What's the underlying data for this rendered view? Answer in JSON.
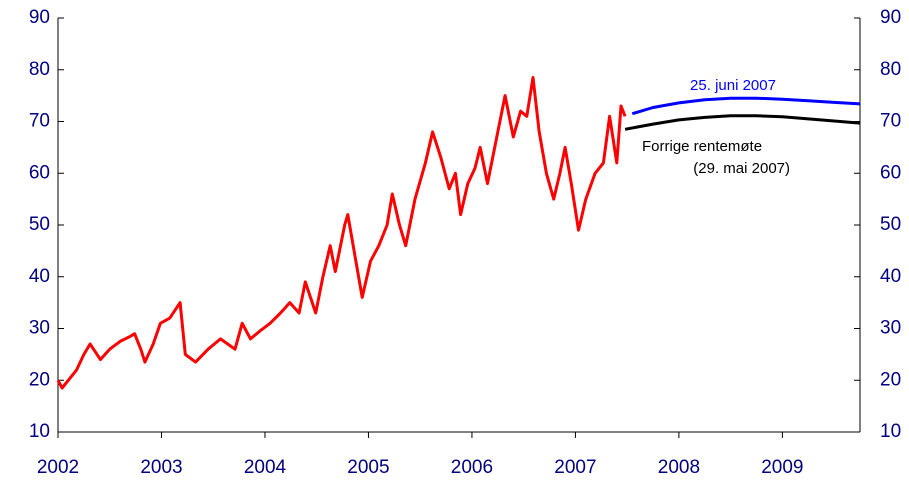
{
  "chart_data": {
    "type": "line",
    "xlim": [
      2002,
      2009.75
    ],
    "xticks": [
      2002,
      2003,
      2004,
      2005,
      2006,
      2007,
      2008,
      2009
    ],
    "ylim": [
      10,
      90
    ],
    "yticks": [
      10,
      20,
      30,
      40,
      50,
      60,
      70,
      80,
      90
    ],
    "y2lim": [
      10,
      90
    ],
    "y2ticks": [
      10,
      20,
      30,
      40,
      50,
      60,
      70,
      80,
      90
    ],
    "series": [
      {
        "color": "#ff0000",
        "x": [
          2002.0,
          2002.04,
          2002.1,
          2002.18,
          2002.25,
          2002.31,
          2002.36,
          2002.41,
          2002.5,
          2002.6,
          2002.7,
          2002.74,
          2002.8,
          2002.84,
          2002.92,
          2002.99,
          2003.08,
          2003.18,
          2003.23,
          2003.33,
          2003.45,
          2003.57,
          2003.64,
          2003.71,
          2003.78,
          2003.86,
          2003.95,
          2004.05,
          2004.15,
          2004.24,
          2004.33,
          2004.39,
          2004.49,
          2004.56,
          2004.63,
          2004.68,
          2004.77,
          2004.8,
          2004.87,
          2004.94,
          2005.02,
          2005.1,
          2005.18,
          2005.23,
          2005.3,
          2005.36,
          2005.45,
          2005.55,
          2005.62,
          2005.7,
          2005.78,
          2005.84,
          2005.89,
          2005.96,
          2006.03,
          2006.08,
          2006.15,
          2006.25,
          2006.32,
          2006.4,
          2006.47,
          2006.53,
          2006.59,
          2006.65,
          2006.72,
          2006.79,
          2006.85,
          2006.9,
          2006.96,
          2007.03,
          2007.1,
          2007.19,
          2007.27,
          2007.33,
          2007.4,
          2007.44,
          2007.48
        ],
        "values": [
          20,
          18.5,
          20,
          22,
          25,
          27,
          25.5,
          24,
          26,
          27.5,
          28.5,
          29,
          26,
          23.5,
          27,
          31,
          32,
          35,
          25,
          23.5,
          26,
          28,
          27,
          26,
          31,
          28,
          29.5,
          31,
          33,
          35,
          33,
          39,
          33,
          40,
          46,
          41,
          50,
          52,
          44,
          36,
          43,
          46,
          50,
          56,
          50,
          46,
          55,
          62,
          68,
          63,
          57,
          60,
          52,
          58,
          61,
          65,
          58,
          68,
          75,
          67,
          72,
          71,
          78.5,
          68,
          60,
          55,
          60,
          65,
          58,
          49,
          55,
          60,
          62,
          71,
          62,
          73,
          71
        ]
      },
      {
        "color": "#0000ff",
        "x": [
          2007.55,
          2007.75,
          2008.0,
          2008.25,
          2008.5,
          2008.75,
          2009.0,
          2009.25,
          2009.5,
          2009.75
        ],
        "values": [
          71.5,
          72.7,
          73.6,
          74.2,
          74.5,
          74.5,
          74.3,
          74.0,
          73.7,
          73.4
        ]
      },
      {
        "color": "#000000",
        "x": [
          2007.48,
          2007.75,
          2008.0,
          2008.25,
          2008.5,
          2008.75,
          2009.0,
          2009.25,
          2009.5,
          2009.75
        ],
        "values": [
          68.5,
          69.5,
          70.3,
          70.8,
          71.1,
          71.1,
          70.9,
          70.5,
          70.1,
          69.7
        ]
      }
    ],
    "annotations": [
      {
        "text": "25. juni 2007",
        "color": "#0000ff"
      },
      {
        "text": "Forrige rentemøte",
        "color": "#000000"
      },
      {
        "text": "(29. mai 2007)",
        "color": "#000000"
      }
    ]
  }
}
